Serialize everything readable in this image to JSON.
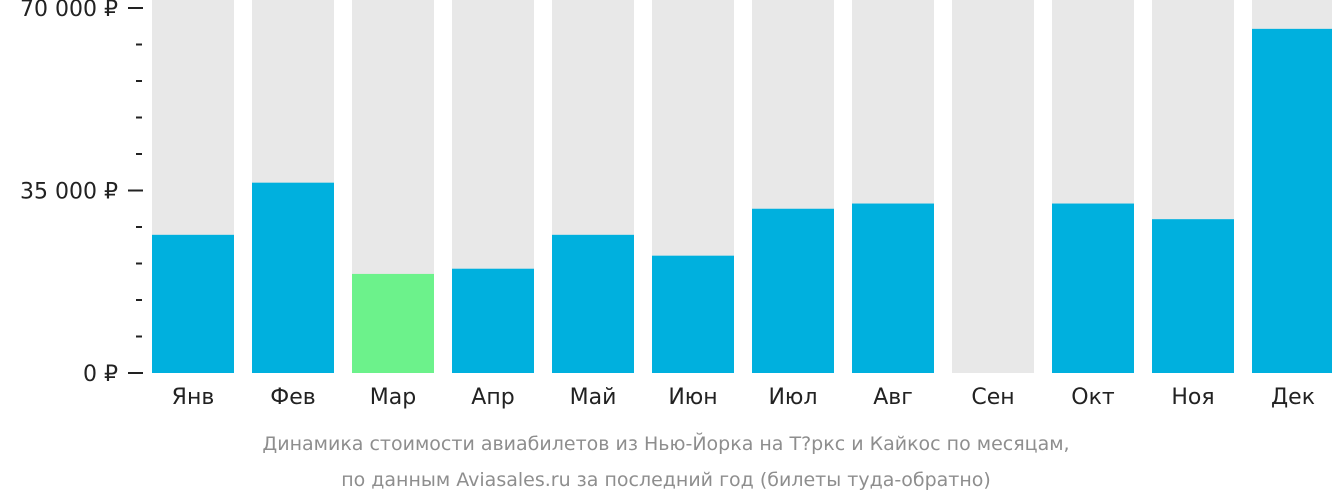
{
  "chart_data": {
    "type": "bar",
    "currency_symbol": "₽",
    "categories": [
      "Янв",
      "Фев",
      "Мар",
      "Апр",
      "Май",
      "Июн",
      "Июл",
      "Авг",
      "Сен",
      "Окт",
      "Ноя",
      "Дек"
    ],
    "values": [
      26500,
      36500,
      19000,
      20000,
      26500,
      22500,
      31500,
      32500,
      null,
      32500,
      29500,
      66000
    ],
    "highlight_index": 2,
    "ylim": [
      0,
      70000
    ],
    "major_ticks": [
      0,
      35000,
      70000
    ],
    "major_tick_labels": [
      "0 ₽",
      "35 000 ₽",
      "70 000 ₽"
    ],
    "minor_ticks": [
      7000,
      14000,
      21000,
      28000,
      42000,
      49000,
      56000,
      63000
    ],
    "colors": {
      "bar": "#00b0de",
      "highlight": "#6cf28b",
      "background_column": "#e8e8e8",
      "axis": "#222222"
    }
  },
  "caption": {
    "line1": "Динамика стоимости авиабилетов из Нью-Йорка на Т?ркс и Кайкос по месяцам,",
    "line2": "по данным Aviasales.ru за последний год (билеты туда-обратно)"
  }
}
